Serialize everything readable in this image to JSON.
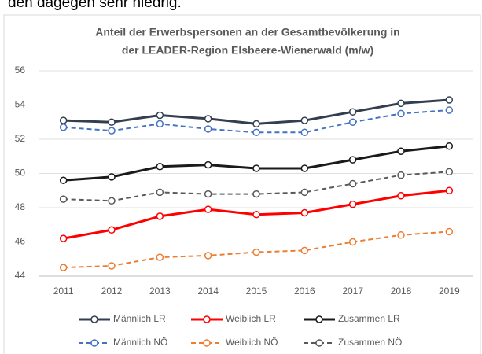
{
  "context_text": "den dagegen sehr niedrig.",
  "chart_data": {
    "type": "line",
    "title": [
      "Anteil der Erwerbspersonen an der Gesamtbevölkerung in",
      "der LEADER-Region Elsbeere-Wienerwald (m/w)"
    ],
    "categories": [
      "2011",
      "2012",
      "2013",
      "2014",
      "2015",
      "2016",
      "2017",
      "2018",
      "2019"
    ],
    "series": [
      {
        "name": "Männlich LR",
        "color": "#333f50",
        "dashed": false,
        "values": [
          53.1,
          53.0,
          53.4,
          53.2,
          52.9,
          53.1,
          53.6,
          54.1,
          54.3
        ]
      },
      {
        "name": "Weiblich LR",
        "color": "#ff0000",
        "dashed": false,
        "values": [
          46.2,
          46.7,
          47.5,
          47.9,
          47.6,
          47.7,
          48.2,
          48.7,
          49.0
        ]
      },
      {
        "name": "Zusammen LR",
        "color": "#1a1a1a",
        "dashed": false,
        "values": [
          49.6,
          49.8,
          50.4,
          50.5,
          50.3,
          50.3,
          50.8,
          51.3,
          51.6
        ]
      },
      {
        "name": "Männlich NÖ",
        "color": "#4472c4",
        "dashed": true,
        "values": [
          52.7,
          52.5,
          52.9,
          52.6,
          52.4,
          52.4,
          53.0,
          53.5,
          53.7
        ]
      },
      {
        "name": "Weiblich NÖ",
        "color": "#ed7d31",
        "dashed": true,
        "values": [
          44.5,
          44.6,
          45.1,
          45.2,
          45.4,
          45.5,
          46.0,
          46.4,
          46.6
        ]
      },
      {
        "name": "Zusammen NÖ",
        "color": "#595959",
        "dashed": true,
        "values": [
          48.5,
          48.4,
          48.9,
          48.8,
          48.8,
          48.9,
          49.4,
          49.9,
          50.1
        ]
      }
    ],
    "ylim": [
      44,
      56
    ],
    "yticks": [
      44,
      46,
      48,
      50,
      52,
      54,
      56
    ],
    "grid": true,
    "legend": "bottom"
  }
}
